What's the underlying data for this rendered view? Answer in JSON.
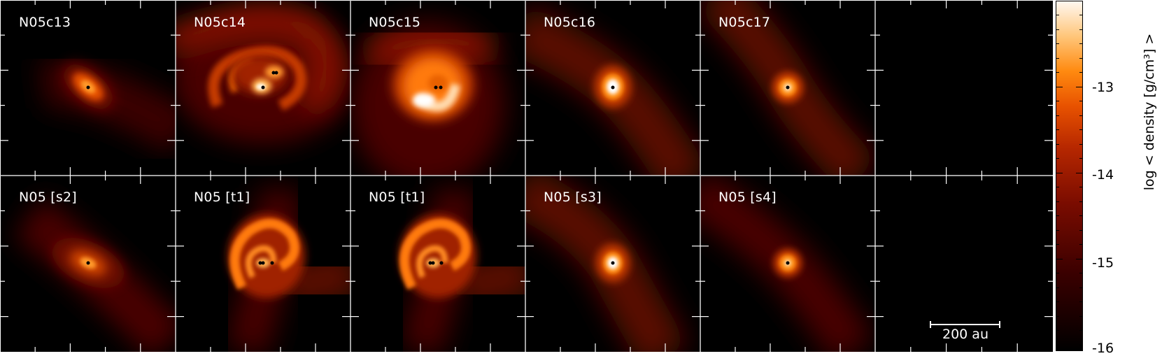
{
  "panels": [
    {
      "label": "N05c13"
    },
    {
      "label": "N05c14"
    },
    {
      "label": "N05c15"
    },
    {
      "label": "N05c16"
    },
    {
      "label": "N05c17"
    },
    {
      "label": ""
    },
    {
      "label": "N05 [s2]"
    },
    {
      "label": "N05 [t1]"
    },
    {
      "label": "N05 [t1]"
    },
    {
      "label": "N05 [s3]"
    },
    {
      "label": "N05 [s4]"
    },
    {
      "label": ""
    }
  ],
  "colorbar": {
    "title": "log < density [g/cm³] >",
    "ticks": [
      "-13",
      "-14",
      "-15",
      "-16"
    ]
  },
  "scalebar": {
    "label": "200 au"
  },
  "colors": {
    "background": "#000000",
    "low": "#3a0000",
    "mid": "#b62700",
    "high": "#ff8a10",
    "peak": "#ffffff"
  }
}
